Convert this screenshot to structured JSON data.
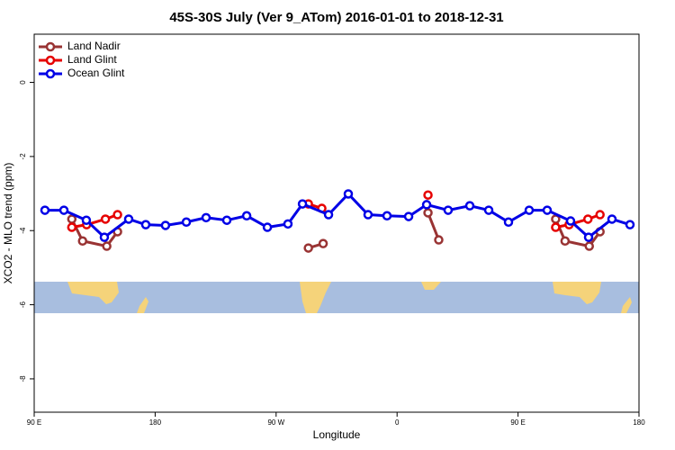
{
  "chart_data": {
    "type": "line",
    "title": "45S-30S July (Ver 9_ATom)   2016-01-01 to 2018-12-31",
    "x_label": "Longitude",
    "y_label": "XCO2 - MLO trend (ppm)",
    "xlim": [
      90,
      540
    ],
    "ylim": [
      -8.9,
      1.3
    ],
    "xticks": [
      {
        "value": 90,
        "label": "90 E"
      },
      {
        "value": 180,
        "label": "180"
      },
      {
        "value": 270,
        "label": "90 W"
      },
      {
        "value": 360,
        "label": "0"
      },
      {
        "value": 450,
        "label": "90 E"
      },
      {
        "value": 540,
        "label": "180"
      }
    ],
    "yticks": [
      0,
      -2,
      -4,
      -6,
      -8
    ],
    "legend": "top-left",
    "series": [
      {
        "name": "Land Nadir",
        "color": "#993333",
        "x": [
          118,
          126,
          144,
          152,
          null,
          294,
          305,
          null,
          383,
          391,
          null,
          478,
          485,
          503,
          511
        ],
        "values": [
          -3.69,
          -4.28,
          -4.42,
          -4.03,
          null,
          -4.47,
          -4.35,
          null,
          -3.52,
          -4.25,
          null,
          -3.69,
          -4.28,
          -4.42,
          -4.03
        ]
      },
      {
        "name": "Land Glint",
        "color": "#e60000",
        "x": [
          118,
          129,
          143,
          152,
          null,
          294,
          304,
          null,
          383,
          null,
          478,
          488,
          502,
          511
        ],
        "values": [
          -3.91,
          -3.84,
          -3.69,
          -3.57,
          null,
          -3.28,
          -3.4,
          null,
          -3.04,
          null,
          -3.91,
          -3.84,
          -3.69,
          -3.57
        ]
      },
      {
        "name": "Ocean Glint",
        "color": "#0000e6",
        "x": [
          98,
          112.1,
          128.8,
          142.2,
          160.3,
          173,
          187.7,
          203.2,
          217.9,
          233.3,
          248.1,
          263.5,
          278.8,
          289.6,
          309,
          323.7,
          338.4,
          352.5,
          368.6,
          382,
          398,
          414.1,
          428.2,
          442.9,
          458.3,
          471.7,
          489.1,
          502.5,
          519.9,
          533.3
        ],
        "values": [
          -3.45,
          -3.45,
          -3.72,
          -4.18,
          -3.69,
          -3.84,
          -3.86,
          -3.77,
          -3.65,
          -3.72,
          -3.6,
          -3.91,
          -3.82,
          -3.28,
          -3.57,
          -3.01,
          -3.57,
          -3.6,
          -3.62,
          -3.3,
          -3.45,
          -3.33,
          -3.45,
          -3.77,
          -3.45,
          -3.45,
          -3.74,
          -4.18,
          -3.69,
          -3.84
        ]
      }
    ]
  }
}
